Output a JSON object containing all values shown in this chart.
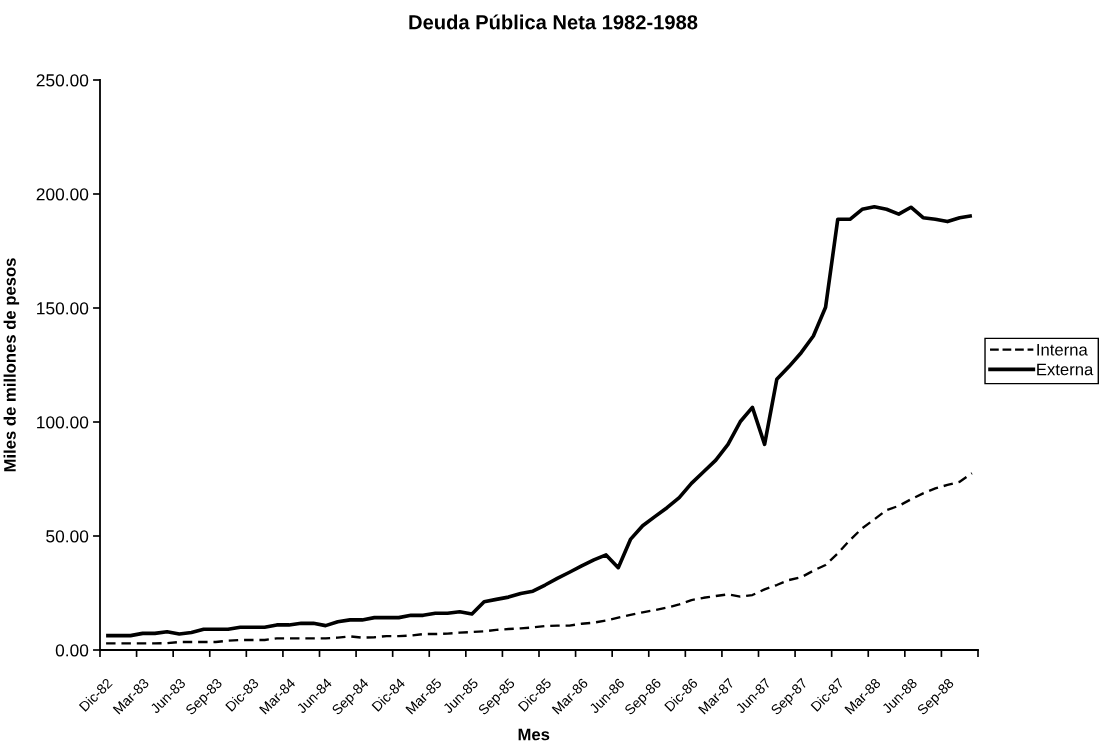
{
  "chart_data": {
    "type": "line",
    "title": "Deuda Pública Neta 1982-1988",
    "xlabel": "Mes",
    "ylabel": "Miles de millones de pesos",
    "categories": [
      "Dic-82",
      null,
      null,
      "Mar-83",
      null,
      null,
      "Jun-83",
      null,
      null,
      "Sep-83",
      null,
      null,
      "Dic-83",
      null,
      null,
      "Mar-84",
      null,
      null,
      "Jun-84",
      null,
      null,
      "Sep-84",
      null,
      null,
      "Dic-84",
      null,
      null,
      "Mar-85",
      null,
      null,
      "Jun-85",
      null,
      null,
      "Sep-85",
      null,
      null,
      "Dic-85",
      null,
      null,
      "Mar-86",
      null,
      null,
      "Jun-86",
      null,
      null,
      "Sep-86",
      null,
      null,
      "Dic-86",
      null,
      null,
      "Mar-87",
      null,
      null,
      "Jun-87",
      null,
      null,
      "Sep-87",
      null,
      null,
      "Dic-87",
      null,
      null,
      "Mar-88",
      null,
      null,
      "Jun-88",
      null,
      null,
      "Sep-88",
      null,
      null
    ],
    "series": [
      {
        "name": "Interna",
        "color": "#000000",
        "line_style": "dashed",
        "values": [
          2.9,
          2.9,
          2.9,
          2.9,
          2.9,
          3.0,
          3.5,
          3.5,
          3.5,
          3.5,
          4.1,
          4.4,
          4.4,
          4.4,
          5.1,
          5.1,
          5.1,
          5.1,
          5.1,
          5.4,
          6.0,
          5.4,
          5.6,
          6.1,
          6.1,
          6.3,
          7.0,
          7.0,
          7.2,
          7.6,
          7.9,
          8.2,
          8.8,
          9.2,
          9.5,
          9.9,
          10.5,
          10.7,
          10.7,
          11.5,
          12.0,
          12.9,
          14.2,
          15.4,
          16.5,
          17.5,
          18.6,
          20.0,
          21.9,
          22.9,
          23.7,
          24.4,
          23.4,
          24.1,
          26.6,
          28.5,
          30.7,
          31.9,
          34.8,
          37.3,
          42.4,
          48.2,
          53.4,
          57.3,
          61.4,
          63.2,
          66.1,
          68.7,
          70.9,
          72.4,
          73.8,
          77.5
        ]
      },
      {
        "name": "Externa",
        "color": "#000000",
        "line_style": "solid",
        "values": [
          6.3,
          6.3,
          6.3,
          7.3,
          7.3,
          8.0,
          7.0,
          7.7,
          9.1,
          9.1,
          9.1,
          10.0,
          10.0,
          10.0,
          11.0,
          11.0,
          11.7,
          11.7,
          10.7,
          12.4,
          13.2,
          13.2,
          14.2,
          14.2,
          14.2,
          15.2,
          15.2,
          16.1,
          16.1,
          16.8,
          15.8,
          21.2,
          22.2,
          23.2,
          24.8,
          25.8,
          28.5,
          31.4,
          34.1,
          36.9,
          39.5,
          41.7,
          36.1,
          48.5,
          54.5,
          58.5,
          62.4,
          66.8,
          73.1,
          78.2,
          83.3,
          90.2,
          100.1,
          106.4,
          90.2,
          118.7,
          124.3,
          130.4,
          137.7,
          150.3,
          188.9,
          188.9,
          193.3,
          194.4,
          193.3,
          191.2,
          194.2,
          189.6,
          188.9,
          187.9,
          189.6,
          190.5
        ]
      }
    ],
    "ylim": [
      0,
      250
    ],
    "yticks": [
      {
        "value": 0,
        "label": "0.00"
      },
      {
        "value": 50,
        "label": "50.00"
      },
      {
        "value": 100,
        "label": "100.00"
      },
      {
        "value": 150,
        "label": "150.00"
      },
      {
        "value": 200,
        "label": "200.00"
      },
      {
        "value": 250,
        "label": "250.00"
      }
    ],
    "legend": "right"
  }
}
